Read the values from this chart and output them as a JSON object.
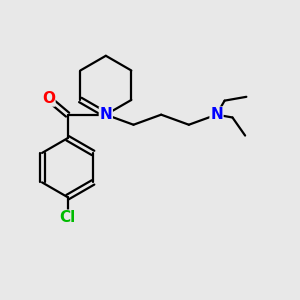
{
  "background_color": "#e8e8e8",
  "bond_color": "#000000",
  "bond_width": 1.6,
  "atom_colors": {
    "O": "#ff0000",
    "N": "#0000ff",
    "Cl": "#00bb00",
    "C": "#000000"
  },
  "font_size_atom": 11,
  "figsize": [
    3.0,
    3.0
  ],
  "dpi": 100,
  "xlim": [
    0,
    10
  ],
  "ylim": [
    0,
    10
  ]
}
